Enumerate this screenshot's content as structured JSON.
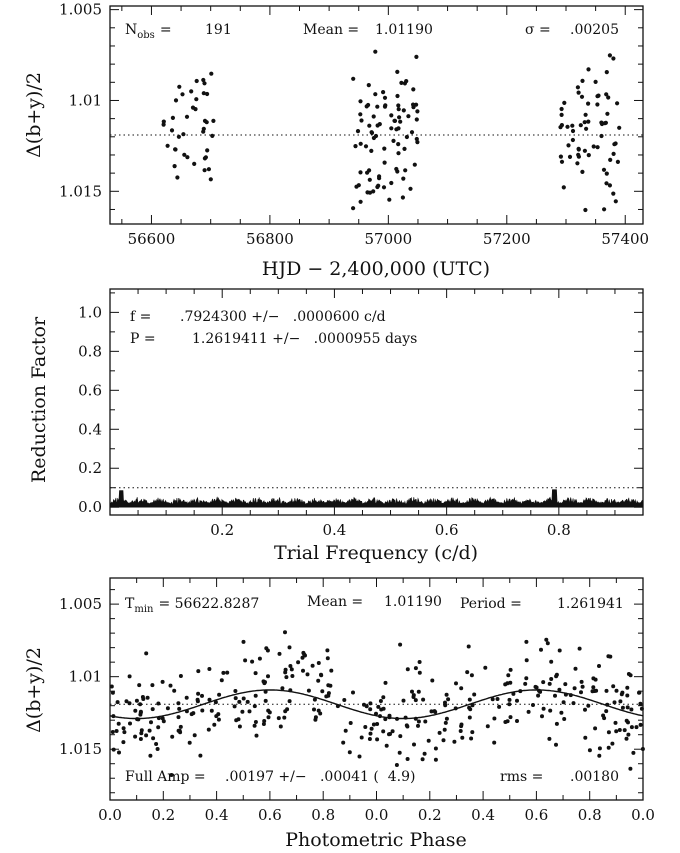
{
  "chart_data": [
    {
      "type": "scatter",
      "annotations": {
        "nobs_label": "N",
        "nobs_sub": "obs",
        "nobs_eq": "=",
        "nobs_value": "191",
        "mean_label": "Mean =",
        "mean_value": "1.01190",
        "sigma_label": "σ =",
        "sigma_value": ".00205"
      },
      "xlabel": "HJD − 2,400,000 (UTC)",
      "ylabel": "Δ(b+y)/2",
      "xlim": [
        56530,
        57430
      ],
      "ylim": [
        1.0168,
        1.0048
      ],
      "y_inverted": true,
      "xticks": [
        56600,
        56800,
        57000,
        57200,
        57400
      ],
      "yticks": [
        1.005,
        1.01,
        1.015
      ],
      "ytick_labels": [
        "1.005",
        "1.01",
        "1.015"
      ],
      "reference_line": 1.0119,
      "point_count": 191
    },
    {
      "type": "line",
      "annotations": {
        "f_label": "f =",
        "f_value": ".7924300 +/−   .0000600 c/d",
        "p_label": "P =",
        "p_value": "1.2619411 +/−   .0000955 days"
      },
      "xlabel": "Trial Frequency (c/d)",
      "ylabel": "Reduction Factor",
      "xlim": [
        0.0,
        0.95
      ],
      "ylim": [
        -0.04,
        1.12
      ],
      "xticks": [
        0.2,
        0.4,
        0.6,
        0.8
      ],
      "xtick_labels": [
        "0.2",
        "0.4",
        "0.6",
        "0.8"
      ],
      "yticks": [
        0.0,
        0.2,
        0.4,
        0.6,
        0.8,
        1.0
      ],
      "ytick_labels": [
        "0.0",
        "0.2",
        "0.4",
        "0.6",
        "0.8",
        "1.0"
      ],
      "reference_line": 0.1,
      "peak_frequency": 0.79243
    },
    {
      "type": "scatter",
      "annotations": {
        "tmin_label": "T",
        "tmin_sub": "min",
        "tmin_value": "= 56622.8287",
        "mean_label": "Mean =",
        "mean_value": "1.01190",
        "period_label": "Period =",
        "period_value": "1.261941",
        "amp_label": "Full Amp =",
        "amp_value": ".00197 +/−   .00041 (  4.9)",
        "rms_label": "rms =",
        "rms_value": ".00180"
      },
      "xlabel": "Photometric Phase",
      "ylabel": "Δ(b+y)/2",
      "xlim": [
        0.0,
        1.0
      ],
      "ylim": [
        1.0185,
        1.0032
      ],
      "y_inverted": true,
      "xticks": [
        0.0,
        0.1,
        0.2,
        0.3,
        0.4,
        0.5,
        0.6,
        0.7,
        0.8,
        0.9,
        1.0
      ],
      "xtick_labels": [
        "0.0",
        "0.2",
        "0.4",
        "0.6",
        "0.8",
        "0.0",
        "0.2",
        "0.4",
        "0.6",
        "0.8",
        "0.0"
      ],
      "yticks": [
        1.005,
        1.01,
        1.015
      ],
      "ytick_labels": [
        "1.005",
        "1.01",
        "1.015"
      ],
      "reference_line": 1.0119,
      "fit": {
        "mean": 1.0119,
        "semi_amplitude": 0.000985,
        "phase_of_max": 0.1
      }
    }
  ]
}
